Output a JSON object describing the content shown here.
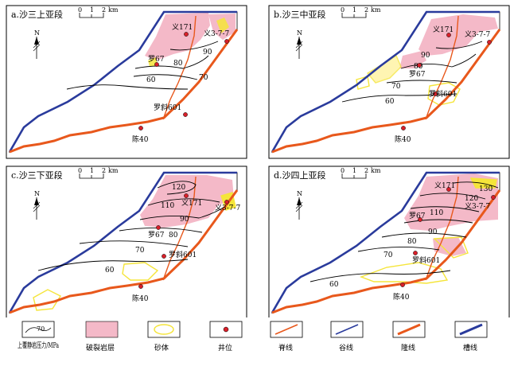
{
  "panels": [
    {
      "title": "a.沙三上亚段",
      "contours": [
        "90",
        "80",
        "70",
        "60"
      ],
      "wells": [
        "义171",
        "义3-7-7",
        "罗67",
        "罗斜601",
        "陈40"
      ]
    },
    {
      "title": "b.沙三中亚段",
      "contours": [
        "90",
        "80",
        "70",
        "60"
      ],
      "wells": [
        "义171",
        "义3-7-7",
        "罗67",
        "罗斜601",
        "陈40"
      ]
    },
    {
      "title": "c.沙三下亚段",
      "contours": [
        "120",
        "110",
        "90",
        "80",
        "70",
        "60"
      ],
      "wells": [
        "义171",
        "义3-7-7",
        "罗67",
        "罗斜601",
        "陈40"
      ]
    },
    {
      "title": "d.沙四上亚段",
      "contours": [
        "130",
        "120",
        "110",
        "90",
        "80",
        "70",
        "60"
      ],
      "wells": [
        "义171",
        "义3-7-7",
        "罗67",
        "罗斜601",
        "陈40"
      ]
    }
  ],
  "scale_bar": {
    "ticks": [
      "0",
      "1",
      "2"
    ],
    "unit": "km"
  },
  "north_label": "N",
  "legend": [
    {
      "key": "contour",
      "label": "上覆静岩压力/MPa",
      "sample": "70"
    },
    {
      "key": "fracture",
      "label": "破裂岩层"
    },
    {
      "key": "sand",
      "label": "砂体"
    },
    {
      "key": "well",
      "label": "井位"
    },
    {
      "key": "ridge",
      "label": "脊线"
    },
    {
      "key": "valley",
      "label": "谷线"
    },
    {
      "key": "uplift",
      "label": "隆线"
    },
    {
      "key": "trough",
      "label": "槽线"
    }
  ],
  "colors": {
    "fracture": "#f4b9c8",
    "sand": "#f5e53a",
    "well": "#d8202a",
    "ridge": "#e8581c",
    "valley": "#2a3b9c",
    "uplift": "#e8581c",
    "trough": "#2a3b9c"
  }
}
